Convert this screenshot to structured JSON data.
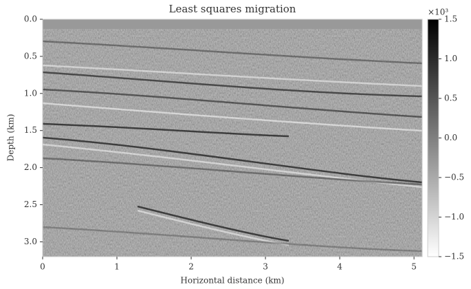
{
  "chart_data": {
    "type": "image",
    "title": "Least squares migration",
    "xlabel": "Horizontal distance (km)",
    "ylabel": "Depth (km)",
    "xlim": [
      0,
      5.11
    ],
    "xticks": [
      0,
      1,
      2,
      3,
      4,
      5
    ],
    "ylim": [
      3.2,
      0
    ],
    "yticks": [
      {
        "value": 0,
        "label": "0.0"
      },
      {
        "value": 0.5,
        "label": "0.5"
      },
      {
        "value": 1,
        "label": "1.0"
      },
      {
        "value": 1.5,
        "label": "1.5"
      },
      {
        "value": 2,
        "label": "2.0"
      },
      {
        "value": 2.5,
        "label": "2.5"
      },
      {
        "value": 3,
        "label": "3.0"
      }
    ],
    "colormap": "gray_r",
    "clim": [
      -1.5,
      1.5
    ],
    "cticks": [
      1.5,
      {
        "value": 1,
        "label": "1.0"
      },
      0.5,
      {
        "value": 0,
        "label": "0.0"
      },
      {
        "value": -0.5,
        "label": "−0.5"
      },
      {
        "value": -1,
        "label": "−1.0"
      },
      {
        "value": -1.5,
        "label": "−1.5"
      }
    ],
    "colorbar_scale": "×10³"
  }
}
